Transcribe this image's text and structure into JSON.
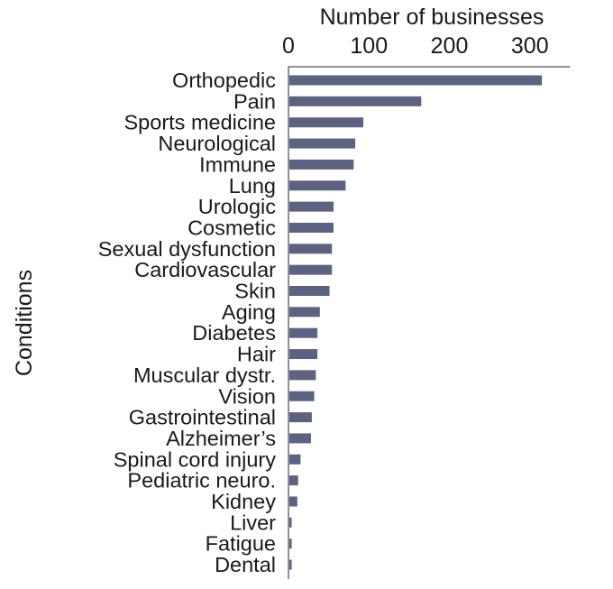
{
  "chart_data": {
    "type": "bar",
    "orientation": "horizontal",
    "xlabel": "Number of businesses",
    "ylabel": "Conditions",
    "xlim": [
      0,
      350
    ],
    "xticks": [
      0,
      100,
      200,
      300
    ],
    "x_axis_position": "top",
    "grid": false,
    "legend": "none",
    "bar_color": "#5c6282",
    "categories": [
      "Orthopedic",
      "Pain",
      "Sports medicine",
      "Neurological",
      "Immune",
      "Lung",
      "Urologic",
      "Cosmetic",
      "Sexual dysfunction",
      "Cardiovascular",
      "Skin",
      "Aging",
      "Diabetes",
      "Hair",
      "Muscular dystr.",
      "Vision",
      "Gastrointestinal",
      "Alzheimer’s",
      "Spinal cord injury",
      "Pediatric neuro.",
      "Kidney",
      "Liver",
      "Fatigue",
      "Dental"
    ],
    "values": [
      315,
      165,
      93,
      83,
      81,
      71,
      56,
      56,
      54,
      54,
      51,
      39,
      36,
      36,
      34,
      32,
      29,
      28,
      15,
      12,
      11,
      4,
      4,
      4
    ]
  }
}
